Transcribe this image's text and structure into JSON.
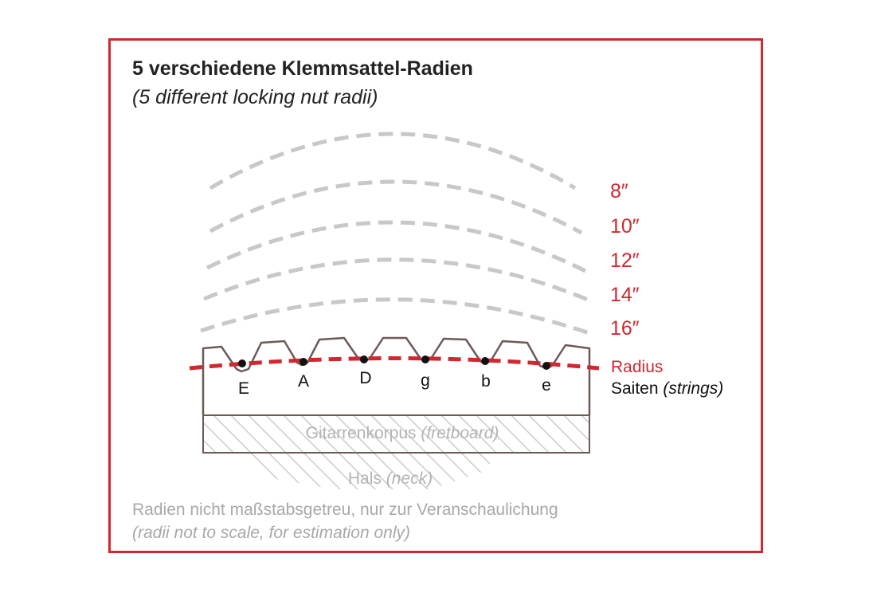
{
  "title": "5 verschiedene Klemmsattel-Radien",
  "subtitle": "(5 different locking nut radii)",
  "radii": [
    {
      "label": "8″"
    },
    {
      "label": "10″"
    },
    {
      "label": "12″"
    },
    {
      "label": "14″"
    },
    {
      "label": "16″"
    }
  ],
  "key": {
    "radius": "Radius",
    "strings": "Saiten",
    "strings_en": "(strings)"
  },
  "strings": [
    "E",
    "A",
    "D",
    "g",
    "b",
    "e"
  ],
  "fretboard": {
    "label": "Gitarrenkorpus",
    "label_en": "(fretboard)"
  },
  "neck": {
    "label": "Hals",
    "label_en": "(neck)"
  },
  "note": {
    "line1": "Radien nicht maßstabsgetreu, nur zur Veranschaulichung",
    "line2": "(radii not to scale, for estimation only)"
  },
  "colors": {
    "accent": "#d0282e",
    "arc_gray": "#c8c8c8",
    "nut_outline": "#6b5a57",
    "hatch": "#cfcfcf",
    "text_gray": "#a8a8a8"
  }
}
